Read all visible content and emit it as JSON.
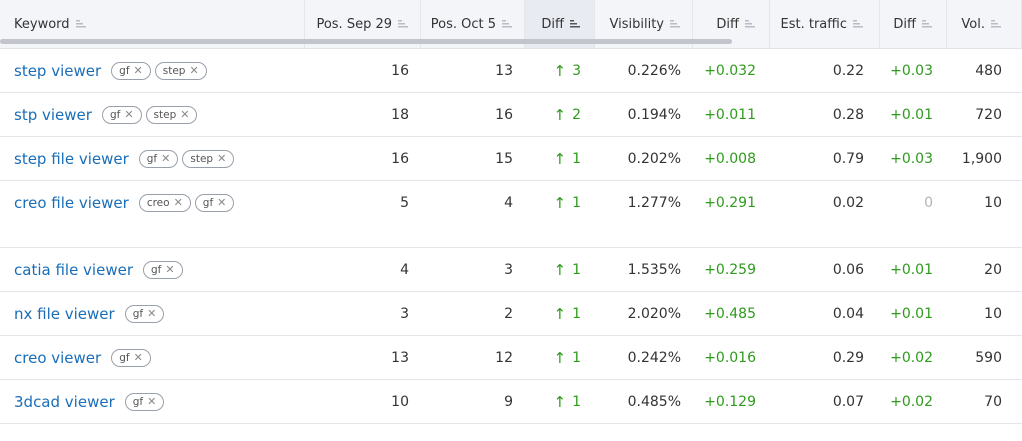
{
  "columns": [
    {
      "key": "keyword",
      "label": "Keyword"
    },
    {
      "key": "pos_sep29",
      "label": "Pos. Sep 29"
    },
    {
      "key": "pos_oct5",
      "label": "Pos. Oct 5"
    },
    {
      "key": "pos_diff",
      "label": "Diff"
    },
    {
      "key": "visibility",
      "label": "Visibility"
    },
    {
      "key": "vis_diff",
      "label": "Diff"
    },
    {
      "key": "est_traffic",
      "label": "Est. traffic"
    },
    {
      "key": "traffic_diff",
      "label": "Diff"
    },
    {
      "key": "volume",
      "label": "Vol."
    }
  ],
  "tag_close_glyph": "✕",
  "up_arrow_glyph": "↑",
  "rows": [
    {
      "keyword": "step viewer",
      "tags": [
        "gf",
        "step"
      ],
      "pos_sep29": "16",
      "pos_oct5": "13",
      "pos_diff": "3",
      "visibility": "0.226%",
      "vis_diff": "+0.032",
      "est_traffic": "0.22",
      "traffic_diff": "+0.03",
      "volume": "480"
    },
    {
      "keyword": "stp viewer",
      "tags": [
        "gf",
        "step"
      ],
      "pos_sep29": "18",
      "pos_oct5": "16",
      "pos_diff": "2",
      "visibility": "0.194%",
      "vis_diff": "+0.011",
      "est_traffic": "0.28",
      "traffic_diff": "+0.01",
      "volume": "720"
    },
    {
      "keyword": "step file viewer",
      "tags": [
        "gf",
        "step"
      ],
      "pos_sep29": "16",
      "pos_oct5": "15",
      "pos_diff": "1",
      "visibility": "0.202%",
      "vis_diff": "+0.008",
      "est_traffic": "0.79",
      "traffic_diff": "+0.03",
      "volume": "1,900"
    },
    {
      "keyword": "creo file viewer",
      "tags": [
        "creo",
        "gf"
      ],
      "pos_sep29": "5",
      "pos_oct5": "4",
      "pos_diff": "1",
      "visibility": "1.277%",
      "vis_diff": "+0.291",
      "est_traffic": "0.02",
      "traffic_diff": "0",
      "volume": "10"
    },
    {
      "keyword": "catia file viewer",
      "tags": [
        "gf"
      ],
      "pos_sep29": "4",
      "pos_oct5": "3",
      "pos_diff": "1",
      "visibility": "1.535%",
      "vis_diff": "+0.259",
      "est_traffic": "0.06",
      "traffic_diff": "+0.01",
      "volume": "20"
    },
    {
      "keyword": "nx file viewer",
      "tags": [
        "gf"
      ],
      "pos_sep29": "3",
      "pos_oct5": "2",
      "pos_diff": "1",
      "visibility": "2.020%",
      "vis_diff": "+0.485",
      "est_traffic": "0.04",
      "traffic_diff": "+0.01",
      "volume": "10"
    },
    {
      "keyword": "creo viewer",
      "tags": [
        "gf"
      ],
      "pos_sep29": "13",
      "pos_oct5": "12",
      "pos_diff": "1",
      "visibility": "0.242%",
      "vis_diff": "+0.016",
      "est_traffic": "0.29",
      "traffic_diff": "+0.02",
      "volume": "590"
    },
    {
      "keyword": "3dcad viewer",
      "tags": [
        "gf"
      ],
      "pos_sep29": "10",
      "pos_oct5": "9",
      "pos_diff": "1",
      "visibility": "0.485%",
      "vis_diff": "+0.129",
      "est_traffic": "0.07",
      "traffic_diff": "+0.02",
      "volume": "70"
    }
  ]
}
